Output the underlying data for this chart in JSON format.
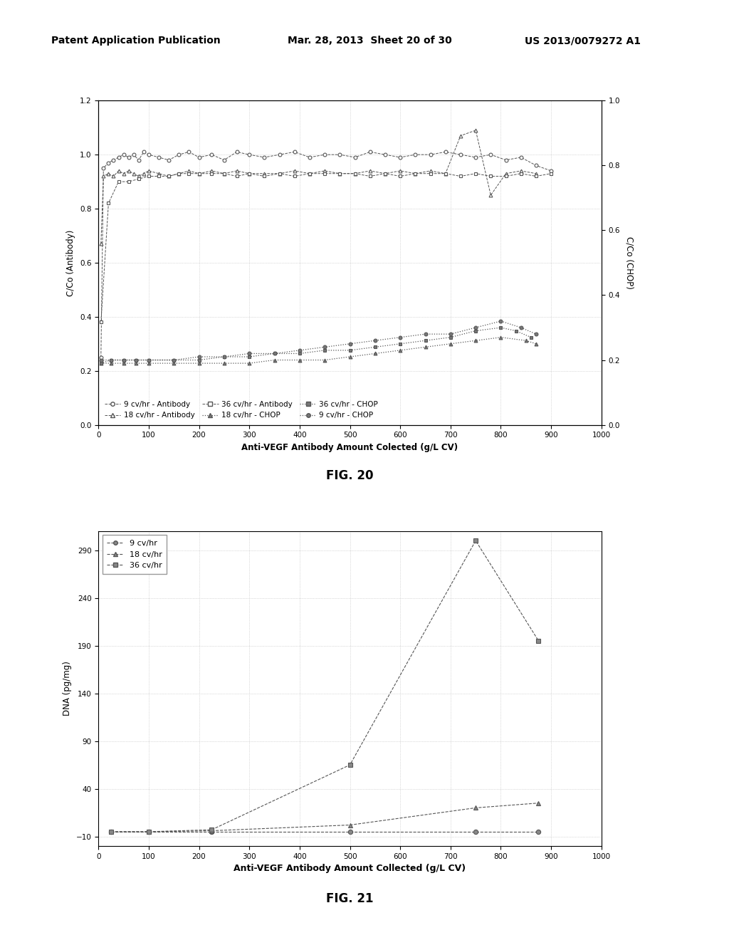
{
  "header_left": "Patent Application Publication",
  "header_mid": "Mar. 28, 2013  Sheet 20 of 30",
  "header_right": "US 2013/0079272 A1",
  "fig20_title": "FIG. 20",
  "fig21_title": "FIG. 21",
  "fig20": {
    "xlabel": "Anti-VEGF Antibody Amount Colected (g/L CV)",
    "ylabel_left": "C/Co (Antibody)",
    "ylabel_right": "C/Co (CHOP)",
    "xlim": [
      0,
      1000
    ],
    "ylim_left": [
      0.0,
      1.2
    ],
    "ylim_right": [
      0.0,
      1.0
    ],
    "yticks_left": [
      0.0,
      0.2,
      0.4,
      0.6,
      0.8,
      1.0,
      1.2
    ],
    "yticks_right": [
      0.0,
      0.2,
      0.4,
      0.6,
      0.8,
      1.0
    ],
    "xticks": [
      0,
      100,
      200,
      300,
      400,
      500,
      600,
      700,
      800,
      900,
      1000
    ],
    "series_9cv_antibody_x": [
      5,
      10,
      20,
      30,
      40,
      50,
      60,
      70,
      80,
      90,
      100,
      120,
      140,
      160,
      180,
      200,
      225,
      250,
      275,
      300,
      330,
      360,
      390,
      420,
      450,
      480,
      510,
      540,
      570,
      600,
      630,
      660,
      690,
      720,
      750,
      780,
      810,
      840,
      870,
      900
    ],
    "series_9cv_antibody_y": [
      0.25,
      0.95,
      0.97,
      0.98,
      0.99,
      1.0,
      0.99,
      1.0,
      0.98,
      1.01,
      1.0,
      0.99,
      0.98,
      1.0,
      1.01,
      0.99,
      1.0,
      0.98,
      1.01,
      1.0,
      0.99,
      1.0,
      1.01,
      0.99,
      1.0,
      1.0,
      0.99,
      1.01,
      1.0,
      0.99,
      1.0,
      1.0,
      1.01,
      1.0,
      0.99,
      1.0,
      0.98,
      0.99,
      0.96,
      0.94
    ],
    "series_18cv_antibody_x": [
      5,
      10,
      20,
      30,
      40,
      50,
      60,
      70,
      80,
      90,
      100,
      120,
      140,
      160,
      180,
      200,
      225,
      250,
      275,
      300,
      330,
      360,
      390,
      420,
      450,
      480,
      510,
      540,
      570,
      600,
      630,
      660,
      690,
      720,
      750,
      780,
      810,
      840,
      870
    ],
    "series_18cv_antibody_y": [
      0.67,
      0.92,
      0.93,
      0.92,
      0.94,
      0.93,
      0.94,
      0.93,
      0.92,
      0.93,
      0.94,
      0.93,
      0.92,
      0.93,
      0.94,
      0.93,
      0.94,
      0.93,
      0.94,
      0.93,
      0.93,
      0.93,
      0.94,
      0.93,
      0.94,
      0.93,
      0.93,
      0.94,
      0.93,
      0.94,
      0.93,
      0.94,
      0.93,
      1.07,
      1.09,
      0.85,
      0.93,
      0.94,
      0.93
    ],
    "series_36cv_antibody_x": [
      5,
      20,
      40,
      60,
      80,
      100,
      120,
      140,
      160,
      180,
      200,
      225,
      250,
      275,
      300,
      330,
      360,
      390,
      420,
      450,
      480,
      510,
      540,
      570,
      600,
      630,
      660,
      690,
      720,
      750,
      780,
      810,
      840,
      870,
      900
    ],
    "series_36cv_antibody_y": [
      0.38,
      0.82,
      0.9,
      0.9,
      0.91,
      0.92,
      0.92,
      0.92,
      0.93,
      0.93,
      0.93,
      0.93,
      0.93,
      0.92,
      0.93,
      0.92,
      0.93,
      0.92,
      0.93,
      0.93,
      0.93,
      0.93,
      0.92,
      0.93,
      0.92,
      0.93,
      0.93,
      0.93,
      0.92,
      0.93,
      0.92,
      0.92,
      0.93,
      0.92,
      0.93
    ],
    "series_18cv_chop_x": [
      5,
      25,
      50,
      75,
      100,
      150,
      200,
      250,
      300,
      350,
      400,
      450,
      500,
      550,
      600,
      650,
      700,
      750,
      800,
      850,
      870
    ],
    "series_18cv_chop_y": [
      0.19,
      0.19,
      0.19,
      0.19,
      0.19,
      0.19,
      0.19,
      0.19,
      0.19,
      0.2,
      0.2,
      0.2,
      0.21,
      0.22,
      0.23,
      0.24,
      0.25,
      0.26,
      0.27,
      0.26,
      0.25
    ],
    "series_36cv_chop_x": [
      5,
      25,
      50,
      75,
      100,
      150,
      200,
      250,
      300,
      350,
      400,
      450,
      500,
      550,
      600,
      650,
      700,
      750,
      800,
      830,
      860
    ],
    "series_36cv_chop_y": [
      0.19,
      0.2,
      0.2,
      0.2,
      0.2,
      0.2,
      0.2,
      0.21,
      0.21,
      0.22,
      0.22,
      0.23,
      0.23,
      0.24,
      0.25,
      0.26,
      0.27,
      0.29,
      0.3,
      0.29,
      0.27
    ],
    "series_9cv_chop_x": [
      5,
      25,
      50,
      75,
      100,
      150,
      200,
      250,
      300,
      350,
      400,
      450,
      500,
      550,
      600,
      650,
      700,
      750,
      800,
      840,
      870
    ],
    "series_9cv_chop_y": [
      0.2,
      0.2,
      0.2,
      0.2,
      0.2,
      0.2,
      0.21,
      0.21,
      0.22,
      0.22,
      0.23,
      0.24,
      0.25,
      0.26,
      0.27,
      0.28,
      0.28,
      0.3,
      0.32,
      0.3,
      0.28
    ]
  },
  "fig21": {
    "xlabel": "Anti-VEGF Antibody Amount Collected (g/L CV)",
    "ylabel": "DNA (pg/mg)",
    "xlim": [
      0,
      1000
    ],
    "ylim": [
      -20,
      310
    ],
    "yticks": [
      -10,
      40,
      90,
      140,
      190,
      240,
      290
    ],
    "xticks": [
      0,
      100,
      200,
      300,
      400,
      500,
      600,
      700,
      800,
      900,
      1000
    ],
    "series_9cv_x": [
      25,
      100,
      225,
      500,
      750,
      875
    ],
    "series_9cv_y": [
      -5,
      -5,
      -5,
      -5,
      -5,
      -5
    ],
    "series_18cv_x": [
      25,
      100,
      225,
      500,
      750,
      875
    ],
    "series_18cv_y": [
      -5,
      -5,
      -4,
      2,
      20,
      25
    ],
    "series_36cv_x": [
      25,
      100,
      225,
      500,
      750,
      875
    ],
    "series_36cv_y": [
      -5,
      -5,
      -3,
      65,
      300,
      195
    ]
  }
}
